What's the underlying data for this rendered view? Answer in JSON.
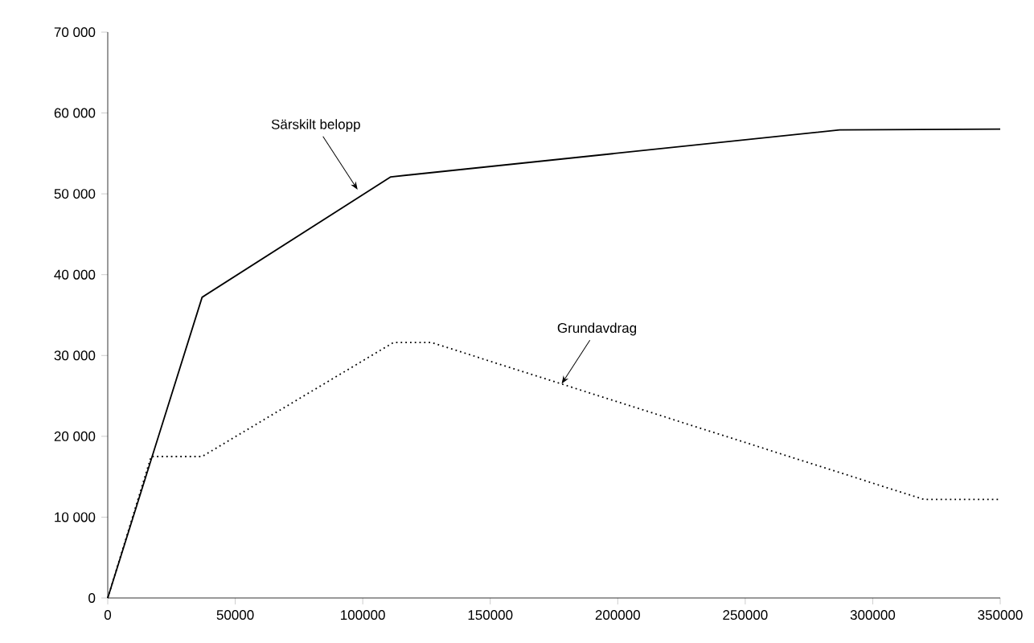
{
  "chart_data": {
    "type": "line",
    "xlim": [
      0,
      350000
    ],
    "ylim": [
      0,
      70000
    ],
    "xticks": [
      0,
      50000,
      100000,
      150000,
      200000,
      250000,
      300000,
      350000
    ],
    "yticks": [
      0,
      {
        "value": 10000,
        "label": "10 000"
      },
      {
        "value": 20000,
        "label": "20 000"
      },
      {
        "value": 30000,
        "label": "30 000"
      },
      {
        "value": 40000,
        "label": "40 000"
      },
      {
        "value": 50000,
        "label": "50 000"
      },
      {
        "value": 60000,
        "label": "60 000"
      },
      {
        "value": 70000,
        "label": "70 000"
      }
    ],
    "marker": "none",
    "series": [
      {
        "color": "#000000",
        "line_style": "solid",
        "x": [
          0,
          37000,
          111000,
          287000,
          350000
        ],
        "values": [
          0,
          37200,
          52100,
          57900,
          58000
        ]
      },
      {
        "color": "#000000",
        "line_style": "dotted",
        "x": [
          0,
          17000,
          37000,
          112000,
          127000,
          320000,
          350000
        ],
        "values": [
          0,
          17500,
          17500,
          31600,
          31600,
          12200,
          12200
        ]
      }
    ],
    "annotations": [
      {
        "text": "Särskilt belopp",
        "x": 98000,
        "y": 50500
      },
      {
        "text": "Grundavdrag",
        "x": 178000,
        "y": 26500
      }
    ]
  }
}
